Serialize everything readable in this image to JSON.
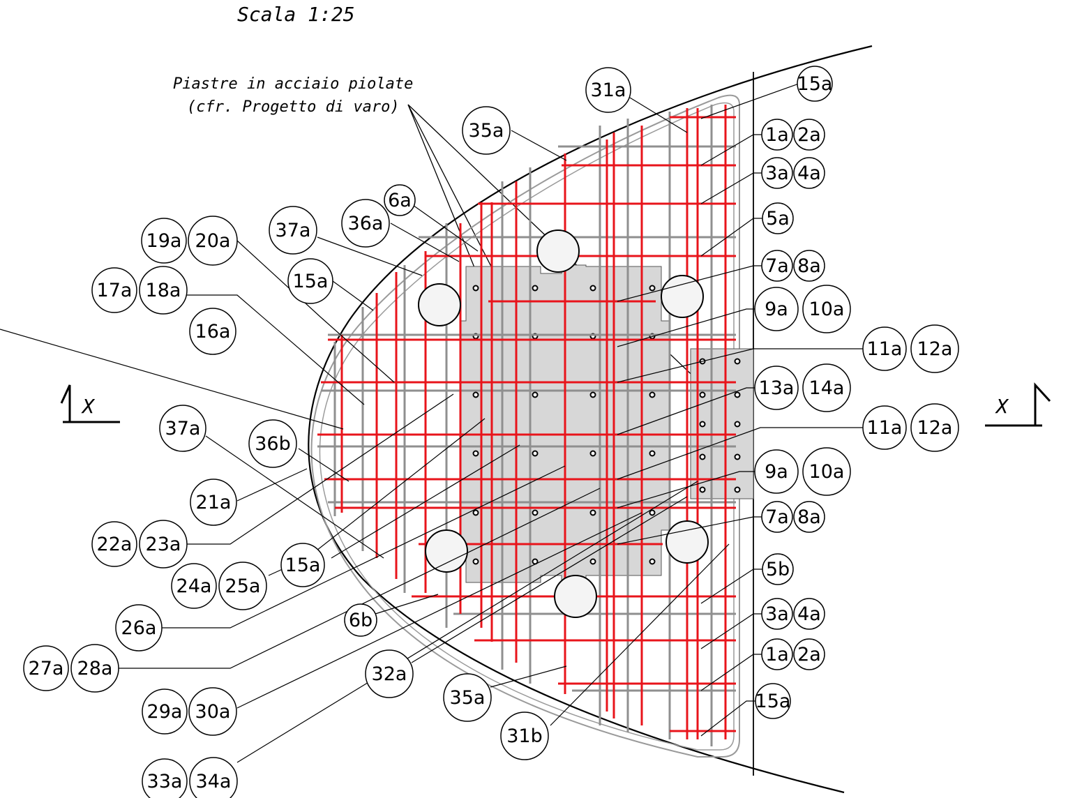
{
  "scale": "Scala  1:25",
  "annotation": [
    "Piastre in acciaio piolate",
    "(cfr. Progetto di varo)"
  ],
  "section_mark": "X",
  "colors": {
    "rebar": "#e8141b",
    "plate": "#d6d6d6",
    "line": "#000000",
    "grey": "#8a8a8a"
  },
  "callouts": {
    "r_top": [
      "15a",
      "1a",
      "2a",
      "3a",
      "4a",
      "5a",
      "7a",
      "8a",
      "9a",
      "10a",
      "11a",
      "12a",
      "13a",
      "14a"
    ],
    "r_bot": [
      "11a",
      "12a",
      "9a",
      "10a",
      "7a",
      "8a",
      "5b",
      "3a",
      "4a",
      "1a",
      "2a",
      "15a"
    ],
    "top": [
      "31a",
      "35a",
      "6a",
      "36a",
      "37a",
      "19a",
      "20a",
      "15a",
      "17a",
      "18a",
      "16a"
    ],
    "left": [
      "37a",
      "36b",
      "21a",
      "22a",
      "23a",
      "15a",
      "24a",
      "25a",
      "26a",
      "6b",
      "27a",
      "28a",
      "32a",
      "35a",
      "29a",
      "30a",
      "31b",
      "33a",
      "34a"
    ]
  }
}
